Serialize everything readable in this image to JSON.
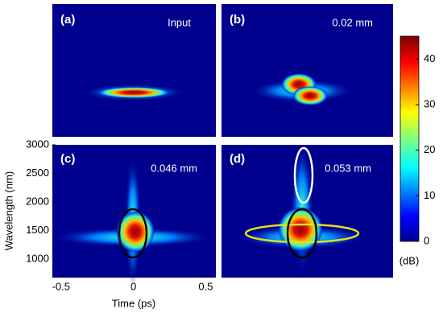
{
  "chart_data": {
    "type": "heatmap",
    "panels": [
      {
        "label": "(a)",
        "annotation": "Input"
      },
      {
        "label": "(b)",
        "annotation": "0.02 mm"
      },
      {
        "label": "(c)",
        "annotation": "0.046 mm"
      },
      {
        "label": "(d)",
        "annotation": "0.053 mm"
      }
    ],
    "xlabel": "Time (ps)",
    "ylabel": "Wavelength (nm)",
    "xlim": [
      -0.56,
      0.57
    ],
    "xticks": [
      -0.5,
      0,
      0.5
    ],
    "ylim": [
      680,
      3000
    ],
    "yticks": [
      1000,
      1500,
      2000,
      2500,
      3000
    ],
    "colorbar": {
      "ylim": [
        0,
        45
      ],
      "ticks": [
        0,
        10,
        20,
        30,
        40
      ],
      "unit": "(dB)"
    }
  }
}
